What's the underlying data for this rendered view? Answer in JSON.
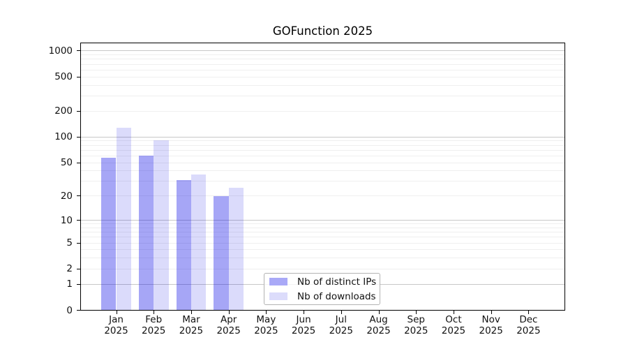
{
  "chart_data": {
    "type": "bar",
    "title": "GOFunction 2025",
    "xlabel": "",
    "ylabel": "",
    "yscale": "log1p",
    "ylim": [
      0,
      1250
    ],
    "yticks": [
      0,
      1,
      2,
      5,
      10,
      20,
      50,
      100,
      200,
      500,
      1000
    ],
    "grid": {
      "major": [
        1,
        10,
        100,
        1000
      ],
      "minor": [
        2,
        3,
        4,
        5,
        6,
        7,
        8,
        9,
        20,
        30,
        40,
        50,
        60,
        70,
        80,
        90,
        200,
        300,
        400,
        500,
        600,
        700,
        800,
        900
      ]
    },
    "categories": [
      "Jan 2025",
      "Feb 2025",
      "Mar 2025",
      "Apr 2025",
      "May 2025",
      "Jun 2025",
      "Jul 2025",
      "Aug 2025",
      "Sep 2025",
      "Oct 2025",
      "Nov 2025",
      "Dec 2025"
    ],
    "series": [
      {
        "name": "Nb of distinct IPs",
        "slug": "distinct-ips",
        "swatch": "#a9a9f7",
        "fill": "rgba(0,0,230,0.35)",
        "values": [
          57,
          61,
          31,
          20,
          null,
          null,
          null,
          null,
          null,
          null,
          null,
          null
        ]
      },
      {
        "name": "Nb of downloads",
        "slug": "downloads",
        "swatch": "#dcdcfb",
        "fill": "rgba(0,0,230,0.14)",
        "values": [
          128,
          92,
          36,
          25,
          null,
          null,
          null,
          null,
          null,
          null,
          null,
          null
        ]
      }
    ],
    "legend_position": "inside-bottom-center",
    "colors": {
      "grid_major": "#c8c8c8",
      "grid_minor": "#efefef",
      "axis": "#000000",
      "background": "#ffffff"
    }
  }
}
